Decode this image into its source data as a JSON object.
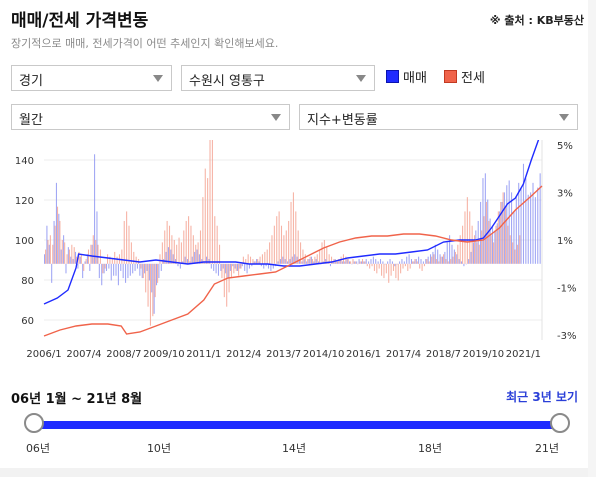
{
  "header": {
    "title": "매매/전세 가격변동",
    "source": "※ 출처 : KB부동산",
    "description": "장기적으로 매매, 전세가격이 어떤 추세인지 확인해보세요."
  },
  "filters": {
    "region": "경기",
    "district": "수원시 영통구",
    "period": "월간",
    "mode": "지수+변동률"
  },
  "legend": [
    {
      "label": "매매",
      "color": "#1f2bff"
    },
    {
      "label": "전세",
      "color": "#f0634a"
    }
  ],
  "range": {
    "text": "06년 1월 ~ 21년 8월",
    "recent_label": "최근 3년 보기",
    "ticks": [
      "06년",
      "10년",
      "14년",
      "18년",
      "21년"
    ],
    "start_fraction": 0,
    "end_fraction": 1
  },
  "chart_data": {
    "type": "line",
    "x_start": "2006-01",
    "x_end": "2021-08",
    "x_tick_labels": [
      "2006/1",
      "2007/4",
      "2008/7",
      "2009/10",
      "2011/1",
      "2012/4",
      "2013/7",
      "2014/10",
      "2016/1",
      "2017/4",
      "2018/7",
      "2019/10",
      "2021/1"
    ],
    "y_left": {
      "ticks": [
        60,
        80,
        100,
        120,
        140
      ],
      "range": [
        50,
        150
      ]
    },
    "y_right": {
      "ticks": [
        "5%",
        "3%",
        "1%",
        "-1%",
        "-3%"
      ],
      "range": [
        -3.2,
        5.2
      ]
    },
    "series": [
      {
        "name": "매매",
        "color": "#1f2bff",
        "index_points": [
          [
            "2006-01",
            68
          ],
          [
            "2006-06",
            71
          ],
          [
            "2006-10",
            75
          ],
          [
            "2007-01",
            86
          ],
          [
            "2007-02",
            93
          ],
          [
            "2007-07",
            92
          ],
          [
            "2008-01",
            91
          ],
          [
            "2008-07",
            90
          ],
          [
            "2009-01",
            89
          ],
          [
            "2009-07",
            90
          ],
          [
            "2010-01",
            89
          ],
          [
            "2010-07",
            88
          ],
          [
            "2011-01",
            89
          ],
          [
            "2011-06",
            89
          ],
          [
            "2012-01",
            89
          ],
          [
            "2012-06",
            88
          ],
          [
            "2013-01",
            88
          ],
          [
            "2013-07",
            87
          ],
          [
            "2014-01",
            87
          ],
          [
            "2014-07",
            88
          ],
          [
            "2015-01",
            89
          ],
          [
            "2015-07",
            91
          ],
          [
            "2016-01",
            92
          ],
          [
            "2016-07",
            93
          ],
          [
            "2017-01",
            93
          ],
          [
            "2017-07",
            94
          ],
          [
            "2018-01",
            95
          ],
          [
            "2018-07",
            99
          ],
          [
            "2019-01",
            100
          ],
          [
            "2019-07",
            100
          ],
          [
            "2019-10",
            101
          ],
          [
            "2020-01",
            106
          ],
          [
            "2020-04",
            112
          ],
          [
            "2020-07",
            118
          ],
          [
            "2020-10",
            121
          ],
          [
            "2021-01",
            128
          ],
          [
            "2021-04",
            140
          ],
          [
            "2021-08",
            155
          ]
        ],
        "change_pct": [
          0.4,
          1.6,
          0.8,
          -0.8,
          1.8,
          3.4,
          2.1,
          0.6,
          1.2,
          -0.4,
          0.7,
          0.3,
          0.2,
          0.5,
          -0.2,
          0.3,
          -0.6,
          0.1,
          0.4,
          -0.3,
          0.8,
          4.6,
          2.2,
          -0.6,
          -0.9,
          -0.4,
          -0.3,
          -0.2,
          -0.7,
          -0.5,
          -0.5,
          -0.9,
          -0.3,
          -0.6,
          -0.8,
          -0.6,
          -0.5,
          -0.4,
          -0.3,
          -0.2,
          -0.5,
          -0.6,
          -0.4,
          -0.3,
          -0.7,
          -1.2,
          -2.1,
          -0.9,
          -0.6,
          -0.3,
          0.2,
          0.5,
          0.7,
          0.6,
          0.4,
          0.2,
          -0.1,
          -0.2,
          0.1,
          0.3,
          0.2,
          0.1,
          0.3,
          0.5,
          0.6,
          0.4,
          0.2,
          0.1,
          0.3,
          0.2,
          -0.2,
          -0.3,
          -0.4,
          -0.5,
          -0.3,
          -0.2,
          -0.4,
          -0.6,
          -0.3,
          -0.1,
          -0.2,
          -0.3,
          -0.2,
          -0.1,
          -0.3,
          -0.4,
          -0.2,
          -0.1,
          0.1,
          0.2,
          0.1,
          -0.1,
          -0.2,
          -0.1,
          -0.2,
          -0.3,
          -0.2,
          -0.1,
          0.1,
          0.2,
          0.3,
          0.2,
          0.1,
          0.2,
          0.3,
          0.4,
          0.3,
          0.2,
          0.1,
          0.2,
          0.1,
          0.2,
          0.3,
          0.1,
          0.2,
          0.1,
          0.0,
          0.1,
          0.2,
          0.1,
          -0.1,
          0.1,
          0.2,
          0.1,
          0.2,
          0.1,
          0.1,
          0.2,
          0.1,
          0.0,
          0.1,
          0.1,
          0.2,
          0.1,
          0.1,
          0.2,
          0.1,
          0.2,
          0.3,
          0.2,
          0.1,
          0.2,
          0.1,
          0.0,
          0.1,
          0.2,
          0.1,
          -0.1,
          0.0,
          0.1,
          0.2,
          0.1,
          0.3,
          0.4,
          0.2,
          0.1,
          0.2,
          0.3,
          0.2,
          0.1,
          0.2,
          0.3,
          0.4,
          0.5,
          0.8,
          0.6,
          0.4,
          0.3,
          0.5,
          0.9,
          1.2,
          0.8,
          0.6,
          0.4,
          0.2,
          0.1,
          -0.1,
          0.0,
          0.2,
          0.5,
          0.9,
          1.4,
          1.8,
          2.6,
          3.6,
          3.8,
          2.7,
          1.9,
          1.6,
          1.4,
          1.7,
          2.2,
          2.6,
          3.0,
          3.3,
          3.5,
          3.0,
          2.2,
          2.8,
          3.4,
          3.2,
          4.2,
          3.6,
          2.9,
          3.0,
          3.4,
          2.8,
          3.2,
          3.8
        ]
      },
      {
        "name": "전세",
        "color": "#f0634a",
        "index_points": [
          [
            "2006-01",
            52
          ],
          [
            "2006-07",
            55
          ],
          [
            "2007-01",
            57
          ],
          [
            "2007-07",
            58
          ],
          [
            "2008-01",
            58
          ],
          [
            "2008-06",
            57
          ],
          [
            "2008-08",
            53
          ],
          [
            "2009-01",
            54
          ],
          [
            "2009-07",
            57
          ],
          [
            "2010-01",
            60
          ],
          [
            "2010-07",
            63
          ],
          [
            "2011-01",
            70
          ],
          [
            "2011-05",
            78
          ],
          [
            "2011-10",
            81
          ],
          [
            "2012-04",
            82
          ],
          [
            "2012-10",
            83
          ],
          [
            "2013-04",
            84
          ],
          [
            "2013-10",
            88
          ],
          [
            "2014-04",
            92
          ],
          [
            "2014-10",
            96
          ],
          [
            "2015-04",
            99
          ],
          [
            "2015-10",
            101
          ],
          [
            "2016-04",
            102
          ],
          [
            "2016-10",
            102
          ],
          [
            "2017-04",
            103
          ],
          [
            "2017-10",
            103
          ],
          [
            "2018-04",
            102
          ],
          [
            "2018-10",
            100
          ],
          [
            "2019-04",
            99
          ],
          [
            "2019-10",
            100
          ],
          [
            "2020-04",
            106
          ],
          [
            "2020-10",
            115
          ],
          [
            "2021-04",
            122
          ],
          [
            "2021-08",
            127
          ]
        ],
        "change_pct": [
          0.6,
          1.0,
          1.2,
          0.8,
          1.6,
          2.4,
          1.8,
          1.0,
          0.9,
          0.4,
          0.6,
          0.8,
          0.7,
          0.3,
          0.5,
          0.4,
          -0.3,
          0.2,
          0.6,
          0.8,
          1.2,
          1.0,
          0.8,
          0.6,
          -0.4,
          -0.2,
          0.4,
          0.3,
          0.2,
          0.5,
          0.3,
          0.4,
          0.6,
          1.8,
          2.2,
          1.6,
          0.9,
          0.5,
          0.3,
          0.2,
          -0.2,
          -0.6,
          -1.2,
          -1.8,
          -2.6,
          -2.2,
          -1.4,
          -0.8,
          0.4,
          0.9,
          1.4,
          1.8,
          1.6,
          1.2,
          1.0,
          0.8,
          1.1,
          0.9,
          1.4,
          1.8,
          2.0,
          1.6,
          1.2,
          0.8,
          0.9,
          1.4,
          2.8,
          4.0,
          3.6,
          5.4,
          5.5,
          2.0,
          1.6,
          0.8,
          -0.6,
          -1.4,
          -1.8,
          -1.2,
          -0.6,
          -0.4,
          -0.3,
          -0.5,
          -0.2,
          0.3,
          0.2,
          0.4,
          0.3,
          0.2,
          0.1,
          0.2,
          0.3,
          0.4,
          0.5,
          0.6,
          0.9,
          1.2,
          1.6,
          2.0,
          2.2,
          1.6,
          1.2,
          1.4,
          1.8,
          2.6,
          3.0,
          2.2,
          1.4,
          0.9,
          0.6,
          0.4,
          0.2,
          0.3,
          0.2,
          0.3,
          0.4,
          0.6,
          0.9,
          1.0,
          0.7,
          0.4,
          0.3,
          0.2,
          0.1,
          0.2,
          0.3,
          0.4,
          0.3,
          0.2,
          0.1,
          0.2,
          0.1,
          0.0,
          0.1,
          0.2,
          0.1,
          -0.1,
          -0.2,
          -0.1,
          -0.3,
          -0.4,
          -0.2,
          -0.5,
          -0.6,
          -0.4,
          -0.8,
          -0.5,
          -0.3,
          -0.6,
          -0.7,
          -0.4,
          -0.2,
          -0.1,
          -0.3,
          -0.2,
          0.1,
          0.2,
          0.1,
          -0.2,
          -0.3,
          -0.1,
          0.2,
          0.1,
          0.3,
          0.4,
          0.2,
          0.1,
          0.3,
          0.4,
          0.2,
          0.1,
          0.2,
          0.3,
          0.5,
          0.8,
          1.2,
          1.6,
          2.2,
          2.8,
          2.2,
          1.6,
          1.2,
          0.9,
          0.8,
          1.4,
          2.0,
          2.6,
          1.8,
          1.2,
          0.9,
          1.6,
          2.2,
          2.6,
          3.0,
          2.4,
          1.6,
          1.2,
          0.9,
          0.6,
          0.8,
          1.2
        ]
      }
    ]
  }
}
